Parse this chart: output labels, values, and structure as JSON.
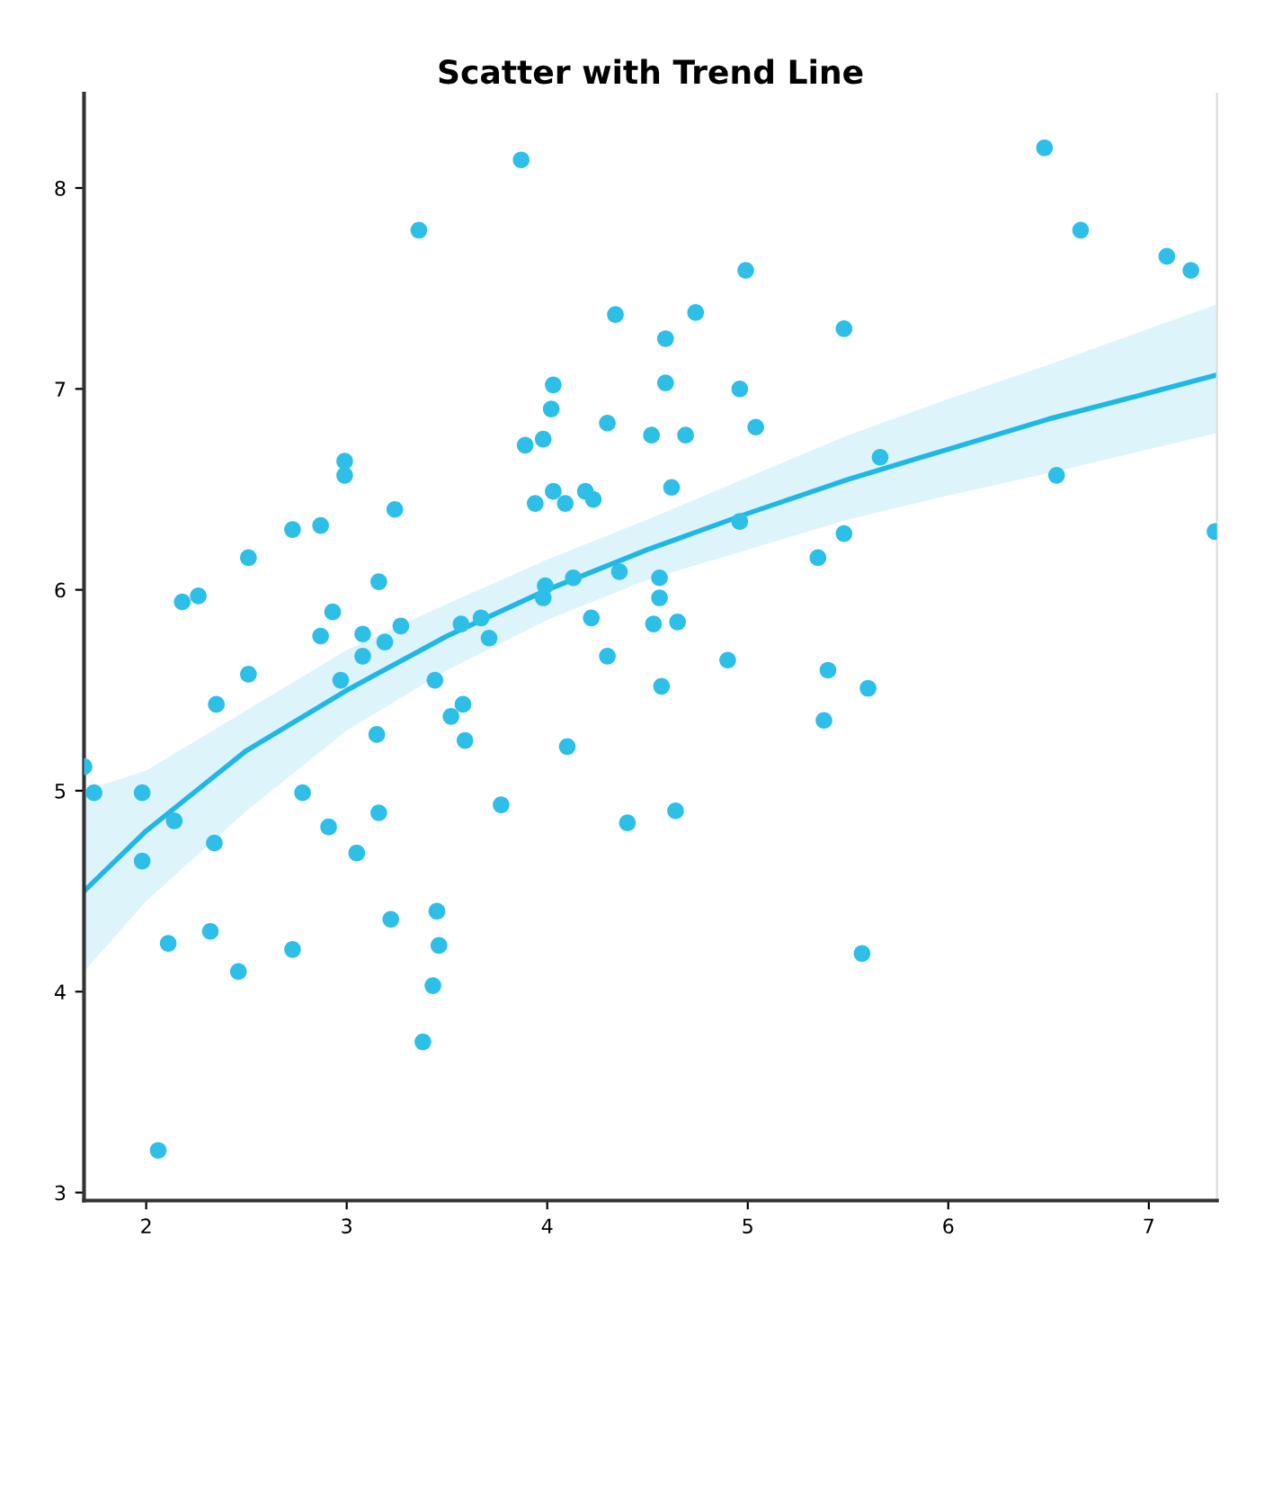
{
  "chart_data": {
    "type": "scatter",
    "title": "Scatter with Trend Line",
    "xlim": [
      1.69,
      7.34
    ],
    "ylim": [
      2.96,
      8.47
    ],
    "xticks": [
      2,
      3,
      4,
      5,
      6,
      7
    ],
    "yticks": [
      3,
      4,
      5,
      6,
      7,
      8
    ],
    "grid": false,
    "legend": false,
    "series": [
      {
        "color": "#2ebfe8",
        "marker": "circle",
        "x": [
          1.69,
          1.74,
          1.98,
          1.98,
          2.06,
          2.11,
          2.14,
          2.18,
          2.26,
          2.32,
          2.34,
          2.35,
          2.46,
          2.51,
          2.51,
          2.73,
          2.73,
          2.78,
          2.87,
          2.87,
          2.91,
          2.93,
          2.97,
          2.99,
          2.99,
          3.05,
          3.08,
          3.08,
          3.15,
          3.16,
          3.16,
          3.19,
          3.22,
          3.24,
          3.27,
          3.36,
          3.38,
          3.43,
          3.44,
          3.45,
          3.46,
          3.52,
          3.57,
          3.58,
          3.59,
          3.67,
          3.71,
          3.77,
          3.87,
          3.89,
          3.94,
          3.98,
          3.98,
          3.99,
          4.02,
          4.03,
          4.03,
          4.09,
          4.1,
          4.13,
          4.19,
          4.22,
          4.23,
          4.3,
          4.3,
          4.34,
          4.36,
          4.4,
          4.52,
          4.53,
          4.56,
          4.56,
          4.57,
          4.59,
          4.59,
          4.62,
          4.64,
          4.65,
          4.69,
          4.74,
          4.9,
          4.96,
          4.96,
          4.99,
          5.04,
          5.35,
          5.38,
          5.4,
          5.48,
          5.48,
          5.57,
          5.6,
          5.66,
          6.48,
          6.54,
          6.66,
          7.09,
          7.21,
          7.33
        ],
        "values": [
          5.12,
          4.99,
          4.99,
          4.65,
          3.21,
          4.24,
          4.85,
          5.94,
          5.97,
          4.3,
          4.74,
          5.43,
          4.1,
          6.16,
          5.58,
          4.21,
          6.3,
          4.99,
          6.32,
          5.77,
          4.82,
          5.89,
          5.55,
          6.57,
          6.64,
          4.69,
          5.67,
          5.78,
          5.28,
          6.04,
          4.89,
          5.74,
          4.36,
          6.4,
          5.82,
          7.79,
          3.75,
          4.03,
          5.55,
          4.4,
          4.23,
          5.37,
          5.83,
          5.43,
          5.25,
          5.86,
          5.76,
          4.93,
          8.14,
          6.72,
          6.43,
          6.75,
          5.96,
          6.02,
          6.9,
          7.02,
          6.49,
          6.43,
          5.22,
          6.06,
          6.49,
          5.86,
          6.45,
          6.83,
          5.67,
          7.37,
          6.09,
          4.84,
          6.77,
          5.83,
          5.96,
          6.06,
          5.52,
          7.03,
          7.25,
          6.51,
          4.9,
          5.84,
          6.77,
          7.38,
          5.65,
          7.0,
          6.34,
          7.59,
          6.81,
          6.16,
          5.35,
          5.6,
          7.3,
          6.28,
          4.19,
          5.51,
          6.66,
          8.2,
          6.57,
          7.79,
          7.66,
          7.59,
          6.29
        ]
      },
      {
        "type": "line",
        "color": "#1fb7e6",
        "x": [
          1.69,
          2,
          2.5,
          3,
          3.5,
          4,
          4.5,
          5,
          5.5,
          6,
          6.5,
          7,
          7.34
        ],
        "values": [
          4.5,
          4.8,
          5.2,
          5.5,
          5.77,
          6.0,
          6.2,
          6.38,
          6.55,
          6.7,
          6.85,
          6.98,
          7.07
        ],
        "lower": [
          4.1,
          4.45,
          4.9,
          5.3,
          5.6,
          5.85,
          6.05,
          6.2,
          6.35,
          6.47,
          6.58,
          6.7,
          6.78
        ],
        "upper": [
          5.0,
          5.1,
          5.4,
          5.7,
          5.93,
          6.15,
          6.35,
          6.56,
          6.77,
          6.95,
          7.12,
          7.3,
          7.42
        ]
      }
    ]
  }
}
